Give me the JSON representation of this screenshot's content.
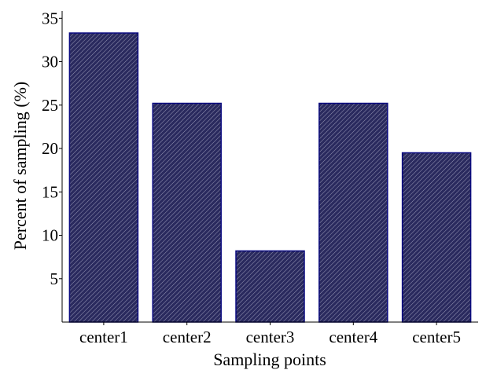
{
  "chart_data": {
    "type": "bar",
    "title": "",
    "xlabel": "Sampling points",
    "ylabel": "Percent of sampling (%)",
    "categories": [
      "center1",
      "center2",
      "center3",
      "center4",
      "center5"
    ],
    "values": [
      33.3,
      25.2,
      8.2,
      25.2,
      19.5
    ],
    "ylim": [
      0,
      36
    ],
    "yticks": [
      5,
      10,
      15,
      20,
      25,
      30,
      35
    ],
    "grid": false,
    "legend": "none",
    "bar_color": "#202058",
    "bar_edge_color": "#0a0a80",
    "hatch": "diagonal"
  }
}
